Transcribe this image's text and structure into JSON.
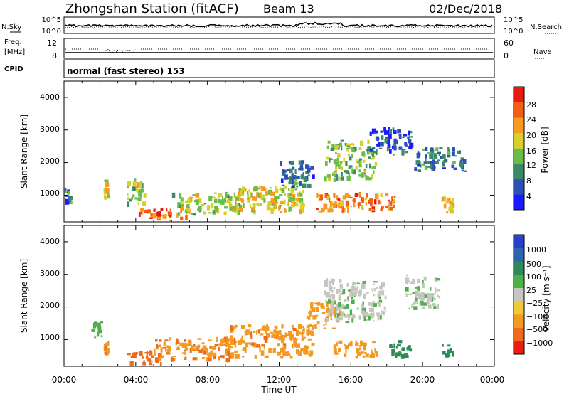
{
  "header": {
    "station": "Zhongshan Station (fitACF)",
    "beam": "Beam 13",
    "date": "02/Dec/2018"
  },
  "strip_noise": {
    "left_label": "N.Sky",
    "left_ticks": [
      "10^5",
      "10^0"
    ],
    "right_ticks": [
      "10^5",
      "10^0"
    ],
    "right_label": "N.Search"
  },
  "strip_freq": {
    "left_label_1": "Freq.",
    "left_label_2": "[MHz]",
    "left_ticks": [
      "12",
      "8"
    ],
    "right_ticks": [
      "60",
      "0"
    ],
    "right_label": "Nave"
  },
  "strip_cpid": {
    "left_label": "CPID",
    "text": "normal (fast stereo) 153"
  },
  "x_axis": {
    "label": "Time UT",
    "ticks": [
      "00:00",
      "04:00",
      "08:00",
      "12:00",
      "16:00",
      "20:00",
      "00:00"
    ]
  },
  "y_axis": {
    "label": "Slant Range [km]",
    "ticks": [
      "1000",
      "2000",
      "3000",
      "4000"
    ]
  },
  "colorbars": {
    "power": {
      "label": "Power [dB]",
      "ticks": [
        "4",
        "8",
        "12",
        "16",
        "20",
        "24",
        "28"
      ],
      "colors": [
        "#1a1aff",
        "#2d4fb8",
        "#3a8a66",
        "#6bbd4a",
        "#d8cf2a",
        "#f79a1e",
        "#f25d10",
        "#e81a10"
      ]
    },
    "velocity": {
      "label": "Velocity [m s⁻¹]",
      "ticks": [
        "1000",
        "500",
        "100",
        "25",
        "−25",
        "−100",
        "−500",
        "−1000"
      ],
      "colors": [
        "#2740c8",
        "#2d64b0",
        "#2f8a5a",
        "#4fb04a",
        "#c6c6c0",
        "#f0c93a",
        "#f29a24",
        "#f06a1a",
        "#e81e10"
      ]
    }
  },
  "chart_data": [
    {
      "type": "heatmap",
      "title": "Power [dB]",
      "xlabel": "Time UT",
      "ylabel": "Slant Range [km]",
      "xlim": [
        0,
        24
      ],
      "ylim": [
        180,
        4500
      ],
      "clim": [
        0,
        32
      ],
      "clusters": [
        {
          "t0": 0.0,
          "t1": 0.5,
          "r0": 700,
          "r1": 1300,
          "value": 8
        },
        {
          "t0": 2.2,
          "t1": 2.6,
          "r0": 800,
          "r1": 1500,
          "value": 16
        },
        {
          "t0": 3.5,
          "t1": 4.6,
          "r0": 600,
          "r1": 1600,
          "value": 16
        },
        {
          "t0": 4.0,
          "t1": 7.0,
          "r0": 180,
          "r1": 600,
          "value": 26
        },
        {
          "t0": 6.0,
          "t1": 10.0,
          "r0": 350,
          "r1": 1100,
          "value": 16
        },
        {
          "t0": 9.5,
          "t1": 13.5,
          "r0": 400,
          "r1": 1300,
          "value": 18
        },
        {
          "t0": 12.0,
          "t1": 14.0,
          "r0": 1200,
          "r1": 2100,
          "value": 8
        },
        {
          "t0": 14.0,
          "t1": 18.5,
          "r0": 450,
          "r1": 1100,
          "value": 24
        },
        {
          "t0": 14.5,
          "t1": 17.5,
          "r0": 1400,
          "r1": 2700,
          "value": 14
        },
        {
          "t0": 17.0,
          "t1": 19.5,
          "r0": 2200,
          "r1": 3100,
          "value": 6
        },
        {
          "t0": 19.5,
          "t1": 22.5,
          "r0": 1700,
          "r1": 2500,
          "value": 8
        },
        {
          "t0": 21.0,
          "t1": 21.8,
          "r0": 400,
          "r1": 1000,
          "value": 20
        }
      ]
    },
    {
      "type": "heatmap",
      "title": "Velocity [m s⁻¹]",
      "xlabel": "Time UT",
      "ylabel": "Slant Range [km]",
      "xlim": [
        0,
        24
      ],
      "ylim": [
        180,
        4500
      ],
      "clim": [
        -1000,
        1000
      ],
      "clusters": [
        {
          "t0": 1.5,
          "t1": 2.2,
          "r0": 1000,
          "r1": 1600,
          "value": 60
        },
        {
          "t0": 2.2,
          "t1": 2.6,
          "r0": 500,
          "r1": 1000,
          "value": -400
        },
        {
          "t0": 3.5,
          "t1": 5.5,
          "r0": 200,
          "r1": 700,
          "value": -800
        },
        {
          "t0": 5.0,
          "t1": 9.5,
          "r0": 300,
          "r1": 1100,
          "value": -450
        },
        {
          "t0": 9.0,
          "t1": 14.0,
          "r0": 400,
          "r1": 1500,
          "value": -420
        },
        {
          "t0": 13.5,
          "t1": 15.5,
          "r0": 1300,
          "r1": 2200,
          "value": -150
        },
        {
          "t0": 15.0,
          "t1": 17.5,
          "r0": 400,
          "r1": 1000,
          "value": -250
        },
        {
          "t0": 14.5,
          "t1": 18.0,
          "r0": 1500,
          "r1": 2900,
          "value": 5
        },
        {
          "t0": 18.0,
          "t1": 19.5,
          "r0": 400,
          "r1": 1000,
          "value": 150
        },
        {
          "t0": 19.0,
          "t1": 21.0,
          "r0": 1900,
          "r1": 3000,
          "value": 10
        },
        {
          "t0": 21.0,
          "t1": 21.8,
          "r0": 400,
          "r1": 1000,
          "value": 220
        }
      ]
    }
  ]
}
